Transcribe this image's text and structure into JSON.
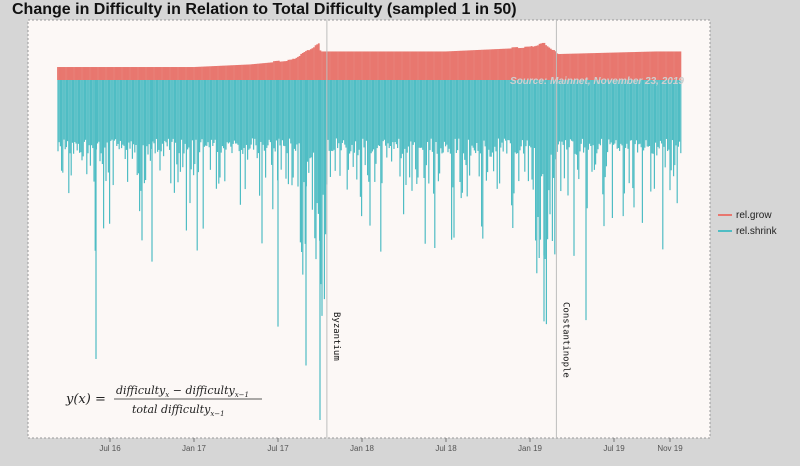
{
  "title": "Change in Difficulty in Relation to Total Difficulty (sampled 1 in 50)",
  "colors": {
    "grow": "#E8776F",
    "shrink": "#4FBDC4",
    "panel": "#FCF8F6",
    "vline": "#bdbdbd"
  },
  "chart_data": {
    "type": "bar",
    "x_ticks": [
      "Jul 16",
      "Jan 17",
      "Jul 17",
      "Jan 18",
      "Jul 18",
      "Jan 19",
      "Jul 19",
      "Nov 19"
    ],
    "x_range": [
      "2016-02",
      "2019-11"
    ],
    "series": [
      {
        "name": "rel.grow",
        "color": "#E8776F"
      },
      {
        "name": "rel.shrink",
        "color": "#4FBDC4"
      }
    ],
    "grow_profile": [
      {
        "date": "2016-03",
        "value": 0.001
      },
      {
        "date": "2016-07",
        "value": 0.001
      },
      {
        "date": "2017-01",
        "value": 0.001
      },
      {
        "date": "2017-05",
        "value": 0.0012
      },
      {
        "date": "2017-08",
        "value": 0.0015
      },
      {
        "date": "2017-10",
        "value": 0.0028
      },
      {
        "date": "2017-10",
        "value": 0.0022
      },
      {
        "date": "2018-07",
        "value": 0.0022
      },
      {
        "date": "2019-01",
        "value": 0.0025
      },
      {
        "date": "2019-02",
        "value": 0.0028
      },
      {
        "date": "2019-03",
        "value": 0.002
      },
      {
        "date": "2019-10",
        "value": 0.0022
      }
    ],
    "shrink_dense_level": -0.0045,
    "shrink_notable_spikes": [
      {
        "date": "2016-06",
        "value": -0.0215
      },
      {
        "date": "2016-10",
        "value": -0.014
      },
      {
        "date": "2017-07",
        "value": -0.019
      },
      {
        "date": "2017-09",
        "value": -0.022
      },
      {
        "date": "2017-10",
        "value": -0.0262
      },
      {
        "date": "2019-02",
        "value": -0.0186
      },
      {
        "date": "2019-05",
        "value": -0.0185
      }
    ],
    "events": [
      {
        "label": "Byzantium",
        "date": "2017-10-16"
      },
      {
        "label": "Constantinople",
        "date": "2019-02-28"
      }
    ],
    "annotation": "Source: Mainnet, November 23, 2019",
    "legend_position": "right",
    "grid": false
  },
  "formula": {
    "lhs": "y(x) =",
    "numerator": "difficulty",
    "numerator_sub1": "x",
    "minus": " − difficulty",
    "numerator_sub2": "x−1",
    "denominator": "total difficulty",
    "denominator_sub": "x−1"
  }
}
